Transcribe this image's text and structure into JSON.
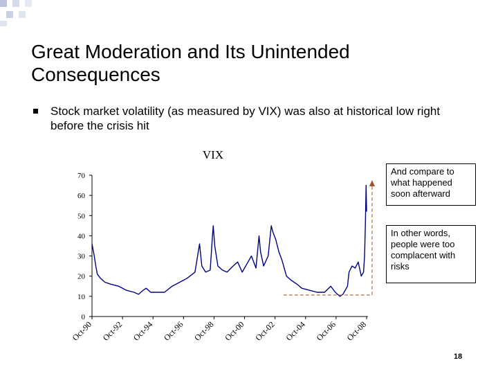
{
  "slide": {
    "title": "Great Moderation and Its Unintended Consequences",
    "bullet": "Stock market volatility (as measured by VIX) was also at historical low right before the crisis hit",
    "note_compare": "And compare to what happened soon afterward",
    "note_complacent": "In other words, people were too complacent with risks",
    "page_number": "18"
  },
  "colors": {
    "series": "#000080",
    "annotation": "#a0522d"
  },
  "chart_data": {
    "type": "line",
    "title": "VIX",
    "xlabel": "",
    "ylabel": "",
    "ylim": [
      0,
      70
    ],
    "yticks": [
      0,
      10,
      20,
      30,
      40,
      50,
      60,
      70
    ],
    "xlim": [
      1990.75,
      2008.75
    ],
    "xticks": [
      {
        "label": "Oct-90",
        "year": 1990.75
      },
      {
        "label": "Oct-92",
        "year": 1992.75
      },
      {
        "label": "Oct-94",
        "year": 1994.75
      },
      {
        "label": "Oct-96",
        "year": 1996.75
      },
      {
        "label": "Oct-98",
        "year": 1998.75
      },
      {
        "label": "Oct-00",
        "year": 2000.75
      },
      {
        "label": "Oct-02",
        "year": 2002.75
      },
      {
        "label": "Oct-04",
        "year": 2004.75
      },
      {
        "label": "Oct-06",
        "year": 2006.75
      },
      {
        "label": "Oct-08",
        "year": 2008.75
      }
    ],
    "series": [
      {
        "name": "VIX",
        "x": [
          1990.75,
          1990.9,
          1991.0,
          1991.1,
          1991.3,
          1991.6,
          1992.0,
          1992.5,
          1993.0,
          1993.5,
          1993.8,
          1994.1,
          1994.3,
          1994.6,
          1995.0,
          1995.5,
          1996.0,
          1996.5,
          1997.0,
          1997.5,
          1997.8,
          1997.95,
          1998.2,
          1998.5,
          1998.65,
          1998.7,
          1998.8,
          1999.0,
          1999.3,
          1999.6,
          2000.0,
          2000.3,
          2000.6,
          2000.9,
          2001.2,
          2001.5,
          2001.7,
          2001.8,
          2002.0,
          2002.3,
          2002.5,
          2002.6,
          2002.8,
          2003.0,
          2003.2,
          2003.5,
          2003.8,
          2004.2,
          2004.5,
          2005.0,
          2005.5,
          2006.0,
          2006.4,
          2006.7,
          2007.0,
          2007.2,
          2007.5,
          2007.6,
          2007.8,
          2008.0,
          2008.2,
          2008.4,
          2008.55,
          2008.62,
          2008.67,
          2008.72,
          2008.75
        ],
        "values": [
          36,
          30,
          25,
          21,
          19,
          17,
          16,
          15,
          13,
          12,
          11,
          13,
          14,
          12,
          12,
          12,
          15,
          17,
          19,
          22,
          36,
          25,
          22,
          23,
          40,
          45,
          35,
          25,
          23,
          22,
          25,
          27,
          22,
          26,
          30,
          24,
          40,
          32,
          25,
          30,
          45,
          42,
          38,
          32,
          28,
          20,
          18,
          16,
          14,
          13,
          12,
          12,
          15,
          12,
          10,
          11,
          15,
          22,
          25,
          24,
          27,
          20,
          22,
          30,
          45,
          65,
          52
        ]
      }
    ],
    "annotations": [
      {
        "text": "And compare to what happened soon afterward"
      },
      {
        "text": "In other words, people were too complacent with risks"
      }
    ]
  }
}
